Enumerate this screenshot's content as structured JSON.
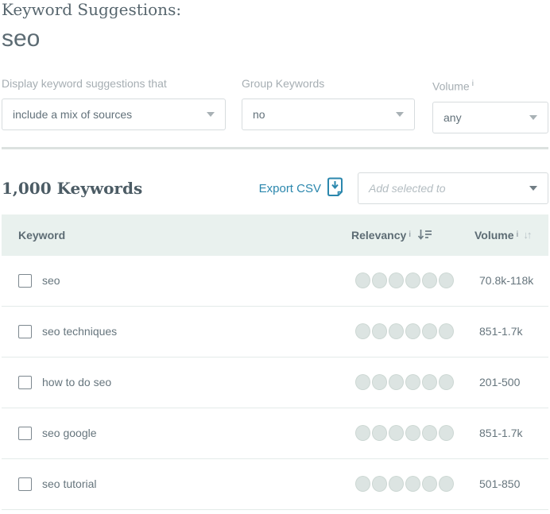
{
  "header": {
    "title": "Keyword Suggestions:",
    "query": "seo"
  },
  "filters": [
    {
      "label": "Display keyword suggestions that",
      "value": "include a mix of sources"
    },
    {
      "label": "Group Keywords",
      "value": "no"
    },
    {
      "label": "Volume",
      "value": "any"
    }
  ],
  "results": {
    "count_label": "1,000 Keywords",
    "export_label": "Export CSV",
    "add_selected_placeholder": "Add selected to"
  },
  "table": {
    "columns": {
      "keyword": "Keyword",
      "relevancy": "Relevancy",
      "volume": "Volume"
    },
    "rows": [
      {
        "keyword": "seo",
        "relevancy_dots": 6,
        "volume": "70.8k-118k"
      },
      {
        "keyword": "seo techniques",
        "relevancy_dots": 6,
        "volume": "851-1.7k"
      },
      {
        "keyword": "how to do seo",
        "relevancy_dots": 6,
        "volume": "201-500"
      },
      {
        "keyword": "seo google",
        "relevancy_dots": 6,
        "volume": "851-1.7k"
      },
      {
        "keyword": "seo tutorial",
        "relevancy_dots": 6,
        "volume": "501-850"
      }
    ]
  },
  "icons": {
    "info": "i",
    "sort_both": "↓↑"
  },
  "colors": {
    "accent_link": "#2b87ad",
    "heading_text": "#4c5c65",
    "muted_label": "#a6aeb3",
    "body_text": "#66757d",
    "table_header_bg": "#e9f1ee",
    "dot_fill": "#dce4e2",
    "border": "#d7dcde"
  }
}
